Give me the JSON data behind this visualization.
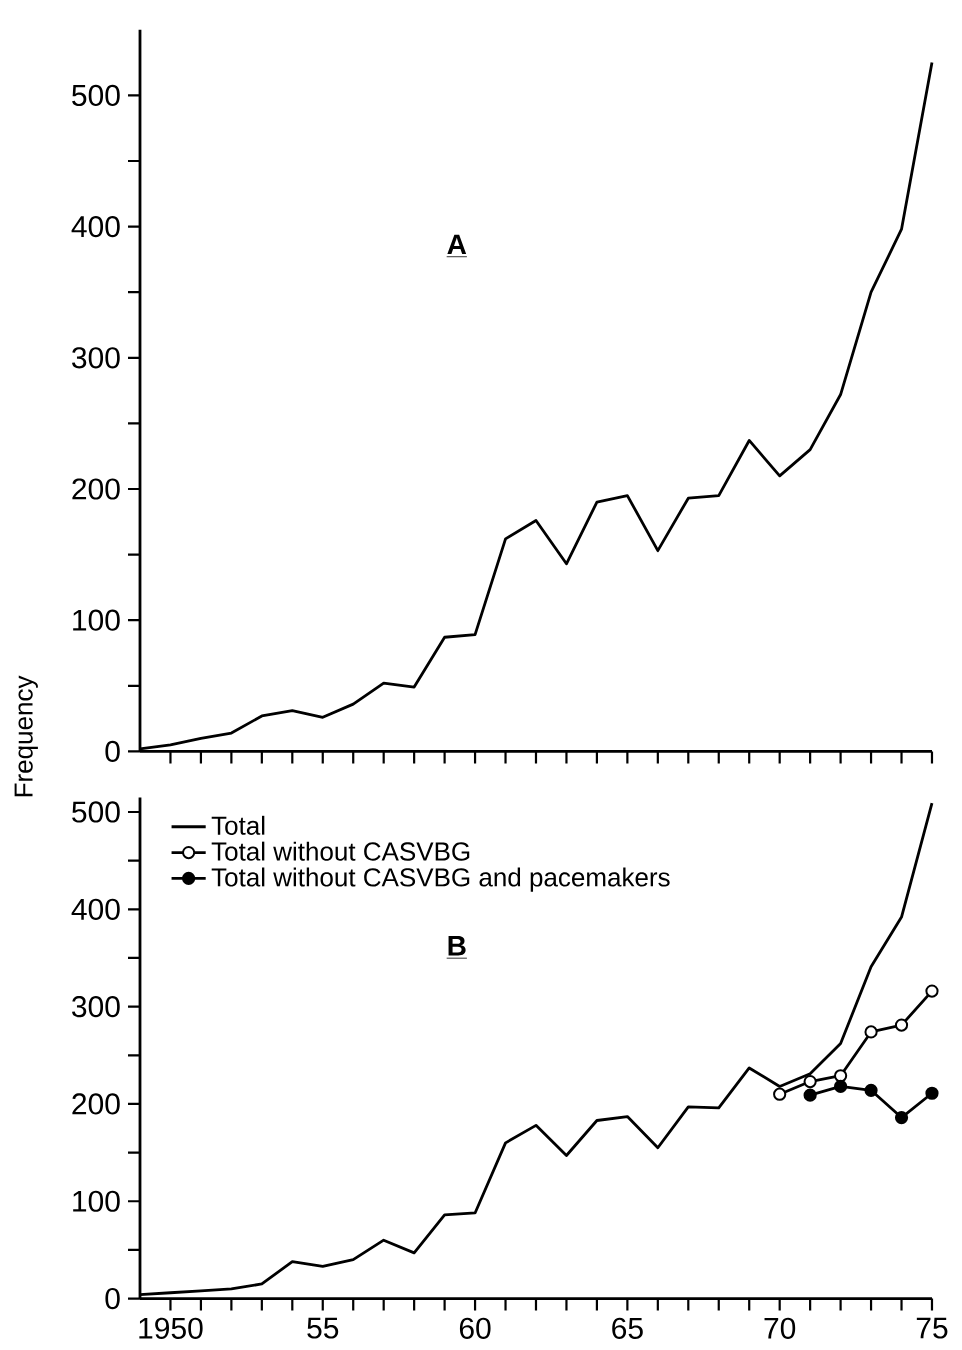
{
  "chart_data": [
    {
      "type": "line",
      "ylabel": "Frequency",
      "annotations": [
        "A"
      ],
      "tick_labels": "y",
      "legend": false,
      "x": [
        1949,
        1950,
        1951,
        1952,
        1953,
        1954,
        1955,
        1956,
        1957,
        1958,
        1959,
        1960,
        1961,
        1962,
        1963,
        1964,
        1965,
        1966,
        1967,
        1968,
        1969,
        1970,
        1971,
        1972,
        1973,
        1974,
        1975
      ],
      "series": [
        {
          "color": "#000000",
          "values": [
            2,
            5,
            10,
            14,
            27,
            31,
            26,
            36,
            52,
            49,
            87,
            89,
            162,
            176,
            143,
            190,
            195,
            153,
            193,
            195,
            237,
            210,
            230,
            272,
            350,
            398,
            525
          ]
        }
      ],
      "xlim": [
        1949,
        1975
      ],
      "ylim": [
        0,
        550
      ],
      "xticks": [
        {
          "value": 1950,
          "label": null
        },
        {
          "value": 1951,
          "label": null
        },
        {
          "value": 1952,
          "label": null
        },
        {
          "value": 1953,
          "label": null
        },
        {
          "value": 1954,
          "label": null
        },
        {
          "value": 1955,
          "label": null
        },
        {
          "value": 1956,
          "label": null
        },
        {
          "value": 1957,
          "label": null
        },
        {
          "value": 1958,
          "label": null
        },
        {
          "value": 1959,
          "label": null
        },
        {
          "value": 1960,
          "label": null
        },
        {
          "value": 1961,
          "label": null
        },
        {
          "value": 1962,
          "label": null
        },
        {
          "value": 1963,
          "label": null
        },
        {
          "value": 1964,
          "label": null
        },
        {
          "value": 1965,
          "label": null
        },
        {
          "value": 1966,
          "label": null
        },
        {
          "value": 1967,
          "label": null
        },
        {
          "value": 1968,
          "label": null
        },
        {
          "value": 1969,
          "label": null
        },
        {
          "value": 1970,
          "label": null
        },
        {
          "value": 1971,
          "label": null
        },
        {
          "value": 1972,
          "label": null
        },
        {
          "value": 1973,
          "label": null
        },
        {
          "value": 1974,
          "label": null
        },
        {
          "value": 1975,
          "label": null
        }
      ],
      "yticks": [
        0,
        {
          "value": 50,
          "label": null
        },
        100,
        {
          "value": 150,
          "label": null
        },
        200,
        {
          "value": 250,
          "label": null
        },
        300,
        {
          "value": 350,
          "label": null
        },
        400,
        {
          "value": 450,
          "label": null
        },
        500
      ]
    },
    {
      "type": "line",
      "annotations": [
        "B"
      ],
      "legend": "top left",
      "x": [
        1949,
        1950,
        1951,
        1952,
        1953,
        1954,
        1955,
        1956,
        1957,
        1958,
        1959,
        1960,
        1961,
        1962,
        1963,
        1964,
        1965,
        1966,
        1967,
        1968,
        1969,
        1970,
        1971,
        1972,
        1973,
        1974,
        1975
      ],
      "series": [
        {
          "name": "Total",
          "color": "#000000",
          "marker": "none",
          "values": [
            4,
            6,
            8,
            10,
            15,
            38,
            33,
            40,
            60,
            47,
            86,
            88,
            160,
            178,
            147,
            183,
            187,
            155,
            197,
            196,
            237,
            218,
            231,
            262,
            341,
            392,
            509
          ]
        },
        {
          "name": "Total without CASVBG",
          "color": "#000000",
          "marker": "circle",
          "x": [
            1970,
            1971,
            1972,
            1973,
            1974,
            1975
          ],
          "values": [
            210,
            223,
            229,
            274,
            281,
            316
          ]
        },
        {
          "name": "Total without CASVBG and pacemakers",
          "color": "#000000",
          "marker": "circle",
          "x": [
            1971,
            1972,
            1973,
            1974,
            1975
          ],
          "values": [
            209,
            218,
            214,
            186,
            211
          ]
        }
      ],
      "xlim": [
        1949,
        1975
      ],
      "ylim": [
        0,
        515
      ],
      "xticks": [
        1950,
        {
          "value": 1951,
          "label": null
        },
        {
          "value": 1952,
          "label": null
        },
        {
          "value": 1953,
          "label": null
        },
        {
          "value": 1954,
          "label": null
        },
        {
          "value": 1955,
          "label": "55"
        },
        {
          "value": 1956,
          "label": null
        },
        {
          "value": 1957,
          "label": null
        },
        {
          "value": 1958,
          "label": null
        },
        {
          "value": 1959,
          "label": null
        },
        {
          "value": 1960,
          "label": "60"
        },
        {
          "value": 1961,
          "label": null
        },
        {
          "value": 1962,
          "label": null
        },
        {
          "value": 1963,
          "label": null
        },
        {
          "value": 1964,
          "label": null
        },
        {
          "value": 1965,
          "label": "65"
        },
        {
          "value": 1966,
          "label": null
        },
        {
          "value": 1967,
          "label": null
        },
        {
          "value": 1968,
          "label": null
        },
        {
          "value": 1969,
          "label": null
        },
        {
          "value": 1970,
          "label": "70"
        },
        {
          "value": 1971,
          "label": null
        },
        {
          "value": 1972,
          "label": null
        },
        {
          "value": 1973,
          "label": null
        },
        {
          "value": 1974,
          "label": null
        },
        {
          "value": 1975,
          "label": "75"
        }
      ],
      "yticks": [
        0,
        {
          "value": 50,
          "label": null
        },
        100,
        {
          "value": 150,
          "label": null
        },
        200,
        {
          "value": 250,
          "label": null
        },
        300,
        {
          "value": 350,
          "label": null
        },
        400,
        {
          "value": 450,
          "label": null
        },
        500
      ]
    }
  ]
}
